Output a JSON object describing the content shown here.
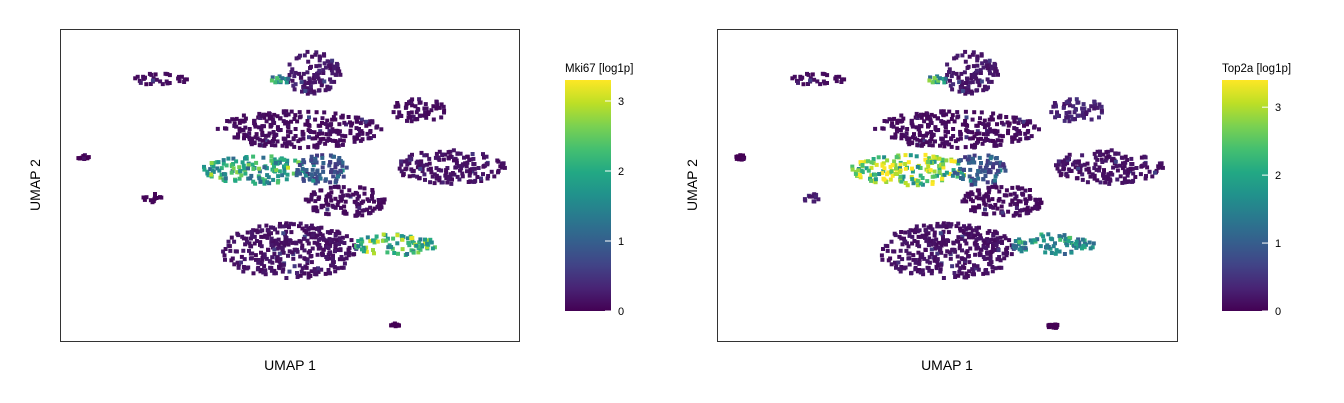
{
  "chart_data": [
    {
      "type": "scatter",
      "subtype": "umap-feature-plot",
      "title": "",
      "xlabel": "UMAP 1",
      "ylabel": "UMAP 2",
      "xticks": false,
      "yticks": false,
      "grid": false,
      "colorbar": {
        "title": "Mki67 [log1p]",
        "colormap": "viridis",
        "range": [
          0,
          3.3
        ],
        "ticks": [
          0,
          1,
          2,
          3
        ]
      },
      "clusters": [
        {
          "id": "top-left-strip",
          "cx": 0.22,
          "cy": 0.84,
          "rx": 0.06,
          "ry": 0.02,
          "expression": 0.1
        },
        {
          "id": "top-column",
          "cx": 0.55,
          "cy": 0.86,
          "rx": 0.06,
          "ry": 0.07,
          "expression": 0.2
        },
        {
          "id": "top-column-hot",
          "cx": 0.48,
          "cy": 0.84,
          "rx": 0.02,
          "ry": 0.015,
          "expression": 1.7
        },
        {
          "id": "top-right-arm",
          "cx": 0.78,
          "cy": 0.74,
          "rx": 0.06,
          "ry": 0.04,
          "expression": 0.1
        },
        {
          "id": "mid-upper-blob",
          "cx": 0.52,
          "cy": 0.68,
          "rx": 0.18,
          "ry": 0.06,
          "expression": 0.1
        },
        {
          "id": "mid-left-proliferating",
          "cx": 0.43,
          "cy": 0.55,
          "rx": 0.12,
          "ry": 0.045,
          "expression": 1.9
        },
        {
          "id": "mid-center",
          "cx": 0.57,
          "cy": 0.55,
          "rx": 0.06,
          "ry": 0.05,
          "expression": 0.8
        },
        {
          "id": "mid-right-blob",
          "cx": 0.85,
          "cy": 0.56,
          "rx": 0.12,
          "ry": 0.055,
          "expression": 0.15
        },
        {
          "id": "mid-loops",
          "cx": 0.62,
          "cy": 0.45,
          "rx": 0.09,
          "ry": 0.05,
          "expression": 0.1
        },
        {
          "id": "left-small",
          "cx": 0.2,
          "cy": 0.46,
          "rx": 0.025,
          "ry": 0.015,
          "expression": 0.05
        },
        {
          "id": "lower-big-blob",
          "cx": 0.5,
          "cy": 0.29,
          "rx": 0.15,
          "ry": 0.09,
          "expression": 0.15
        },
        {
          "id": "lower-right-proliferating",
          "cx": 0.73,
          "cy": 0.31,
          "rx": 0.09,
          "ry": 0.035,
          "expression": 2.2
        },
        {
          "id": "far-left-dot",
          "cx": 0.05,
          "cy": 0.59,
          "rx": 0.012,
          "ry": 0.008,
          "expression": 0.0
        },
        {
          "id": "bottom-dot",
          "cx": 0.73,
          "cy": 0.05,
          "rx": 0.012,
          "ry": 0.008,
          "expression": 0.0
        }
      ]
    },
    {
      "type": "scatter",
      "subtype": "umap-feature-plot",
      "title": "",
      "xlabel": "UMAP 1",
      "ylabel": "UMAP 2",
      "xticks": false,
      "yticks": false,
      "grid": false,
      "colorbar": {
        "title": "Top2a [log1p]",
        "colormap": "viridis",
        "range": [
          0,
          3.4
        ],
        "ticks": [
          0,
          1,
          2,
          3
        ]
      },
      "clusters": [
        {
          "id": "top-left-strip",
          "cx": 0.22,
          "cy": 0.84,
          "rx": 0.06,
          "ry": 0.02,
          "expression": 0.1
        },
        {
          "id": "top-column",
          "cx": 0.55,
          "cy": 0.86,
          "rx": 0.06,
          "ry": 0.07,
          "expression": 0.2
        },
        {
          "id": "top-column-hot",
          "cx": 0.48,
          "cy": 0.84,
          "rx": 0.02,
          "ry": 0.015,
          "expression": 2.0
        },
        {
          "id": "top-right-arm",
          "cx": 0.78,
          "cy": 0.74,
          "rx": 0.06,
          "ry": 0.04,
          "expression": 0.3
        },
        {
          "id": "mid-upper-blob",
          "cx": 0.52,
          "cy": 0.68,
          "rx": 0.18,
          "ry": 0.06,
          "expression": 0.1
        },
        {
          "id": "mid-left-proliferating",
          "cx": 0.42,
          "cy": 0.55,
          "rx": 0.13,
          "ry": 0.05,
          "expression": 2.8
        },
        {
          "id": "mid-center",
          "cx": 0.57,
          "cy": 0.55,
          "rx": 0.06,
          "ry": 0.05,
          "expression": 0.8
        },
        {
          "id": "mid-right-blob",
          "cx": 0.85,
          "cy": 0.56,
          "rx": 0.12,
          "ry": 0.055,
          "expression": 0.15
        },
        {
          "id": "mid-loops",
          "cx": 0.62,
          "cy": 0.45,
          "rx": 0.09,
          "ry": 0.05,
          "expression": 0.1
        },
        {
          "id": "left-small",
          "cx": 0.2,
          "cy": 0.46,
          "rx": 0.025,
          "ry": 0.015,
          "expression": 0.3
        },
        {
          "id": "lower-big-blob",
          "cx": 0.5,
          "cy": 0.29,
          "rx": 0.15,
          "ry": 0.09,
          "expression": 0.15
        },
        {
          "id": "lower-right-proliferating",
          "cx": 0.73,
          "cy": 0.31,
          "rx": 0.09,
          "ry": 0.035,
          "expression": 1.7
        },
        {
          "id": "far-left-dot",
          "cx": 0.05,
          "cy": 0.59,
          "rx": 0.012,
          "ry": 0.008,
          "expression": 0.0
        },
        {
          "id": "bottom-dot",
          "cx": 0.73,
          "cy": 0.05,
          "rx": 0.012,
          "ry": 0.008,
          "expression": 0.0
        }
      ]
    }
  ]
}
